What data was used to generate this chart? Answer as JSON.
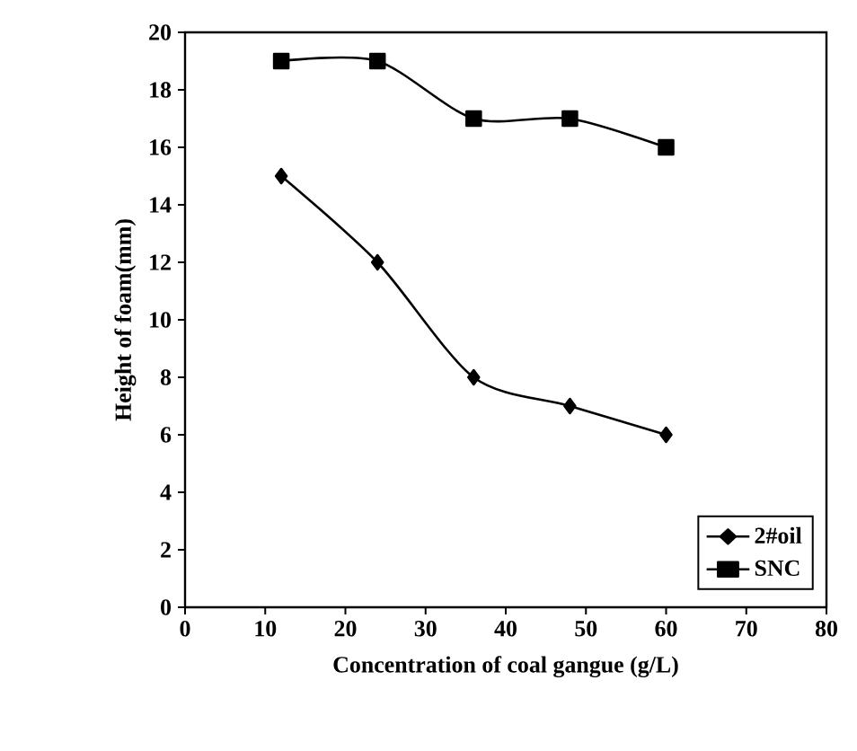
{
  "chart_data": {
    "type": "line",
    "xlabel": "Concentration of coal gangue (g/L)",
    "ylabel": "Height of foam(mm)",
    "x": [
      12,
      24,
      36,
      48,
      60
    ],
    "series": [
      {
        "name": "2#oil",
        "color": "#000000",
        "marker": "diamond",
        "values": [
          15,
          12,
          8,
          7,
          6
        ]
      },
      {
        "name": "SNC",
        "color": "#000000",
        "marker": "square",
        "values": [
          19,
          19,
          17,
          17,
          16
        ]
      }
    ],
    "xlim": [
      0,
      80
    ],
    "ylim": [
      0,
      20
    ],
    "xticks": [
      0,
      10,
      20,
      30,
      40,
      50,
      60,
      70,
      80
    ],
    "yticks": [
      0,
      2,
      4,
      6,
      8,
      10,
      12,
      14,
      16,
      18,
      20
    ],
    "legend": "bottom right",
    "line_style": "solid",
    "grid": false
  }
}
